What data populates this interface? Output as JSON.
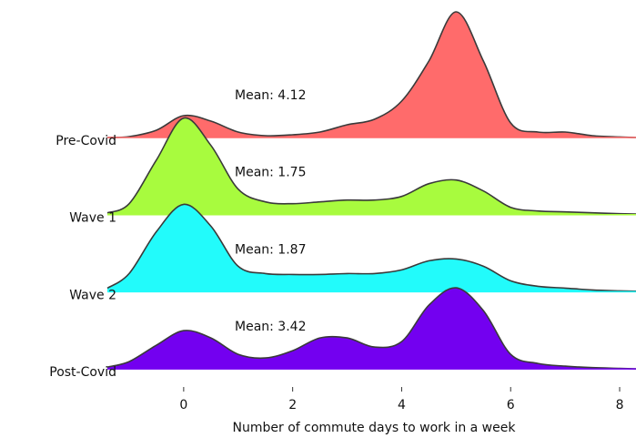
{
  "chart_data": {
    "type": "ridgeline",
    "xlabel": "Number of commute days to work in a week",
    "xlim": [
      -1.4,
      8.3
    ],
    "xticks": [
      0,
      2,
      4,
      6,
      8
    ],
    "x": [
      -1.4,
      -1,
      -0.5,
      0,
      0.5,
      1,
      1.5,
      2,
      2.5,
      3,
      3.5,
      4,
      4.5,
      5,
      5.5,
      6,
      6.5,
      7,
      7.5,
      8,
      8.3
    ],
    "series": [
      {
        "name": "Pre-Covid",
        "color": "#ff6b6b",
        "annotation": "Mean: 4.12",
        "values": [
          0,
          0.005,
          0.04,
          0.12,
          0.09,
          0.03,
          0.01,
          0.015,
          0.03,
          0.07,
          0.1,
          0.2,
          0.42,
          0.69,
          0.42,
          0.08,
          0.03,
          0.03,
          0.01,
          0.003,
          0
        ]
      },
      {
        "name": "Wave 1",
        "color": "#a8fb3e",
        "annotation": "Mean: 1.75",
        "values": [
          0.01,
          0.06,
          0.3,
          0.53,
          0.38,
          0.14,
          0.07,
          0.06,
          0.07,
          0.08,
          0.08,
          0.1,
          0.17,
          0.19,
          0.13,
          0.04,
          0.02,
          0.015,
          0.01,
          0.005,
          0.003
        ]
      },
      {
        "name": "Wave 2",
        "color": "#22fbfb",
        "annotation": "Mean: 1.87",
        "values": [
          0.02,
          0.1,
          0.33,
          0.48,
          0.36,
          0.14,
          0.1,
          0.095,
          0.095,
          0.1,
          0.1,
          0.12,
          0.17,
          0.18,
          0.14,
          0.06,
          0.03,
          0.02,
          0.01,
          0.005,
          0.003
        ]
      },
      {
        "name": "Post-Covid",
        "color": "#7300f0",
        "annotation": "Mean: 3.42",
        "values": [
          0.01,
          0.04,
          0.13,
          0.21,
          0.17,
          0.08,
          0.06,
          0.1,
          0.17,
          0.17,
          0.12,
          0.15,
          0.35,
          0.445,
          0.32,
          0.08,
          0.03,
          0.015,
          0.007,
          0.003,
          0
        ]
      }
    ]
  }
}
